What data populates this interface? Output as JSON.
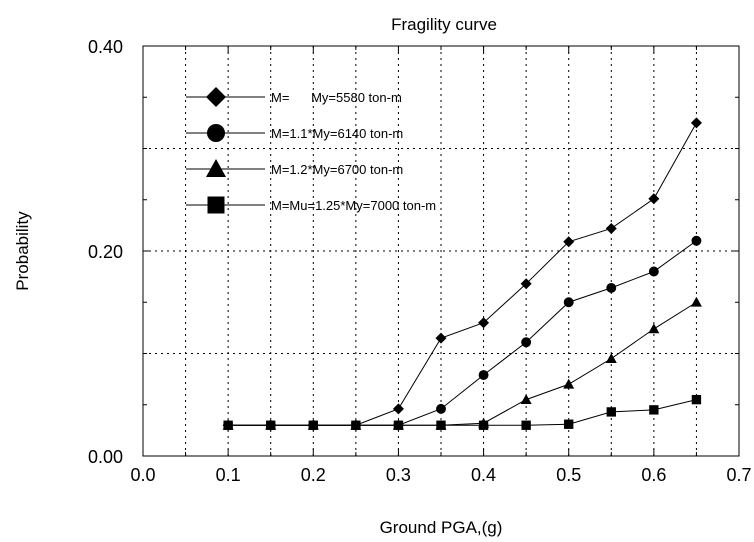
{
  "chart_data": {
    "type": "line",
    "title": "Fragility curve",
    "xlabel": "Ground PGA,(g)",
    "ylabel": "Probability",
    "xlim": [
      0.0,
      0.7
    ],
    "ylim": [
      0.0,
      0.4
    ],
    "x_ticks": [
      "0.0",
      "0.1",
      "0.2",
      "0.3",
      "0.4",
      "0.5",
      "0.6",
      "0.7"
    ],
    "y_ticks": [
      "0.00",
      "0.20",
      "0.40"
    ],
    "grid": "dotted, x every 0.05, y every 0.1",
    "legend_position": "top-left",
    "x": [
      0.1,
      0.15,
      0.2,
      0.25,
      0.3,
      0.35,
      0.4,
      0.45,
      0.5,
      0.55,
      0.6,
      0.65
    ],
    "series": [
      {
        "name": "M=      My=5580 ton-m",
        "marker": "diamond",
        "values": [
          0.03,
          0.03,
          0.03,
          0.03,
          0.046,
          0.115,
          0.13,
          0.168,
          0.209,
          0.222,
          0.251,
          0.325
        ]
      },
      {
        "name": "M=1.1*My=6140 ton-m",
        "marker": "circle",
        "values": [
          0.03,
          0.03,
          0.03,
          0.03,
          0.03,
          0.046,
          0.079,
          0.111,
          0.15,
          0.164,
          0.18,
          0.21
        ]
      },
      {
        "name": "M=1.2*My=6700 ton-m",
        "marker": "triangle",
        "values": [
          0.03,
          0.03,
          0.03,
          0.03,
          0.03,
          0.03,
          0.032,
          0.055,
          0.07,
          0.095,
          0.124,
          0.15
        ]
      },
      {
        "name": "M=Mu=1.25*My=7000 ton-m",
        "marker": "square",
        "values": [
          0.03,
          0.03,
          0.03,
          0.03,
          0.03,
          0.03,
          0.03,
          0.03,
          0.031,
          0.043,
          0.045,
          0.055
        ]
      }
    ]
  }
}
